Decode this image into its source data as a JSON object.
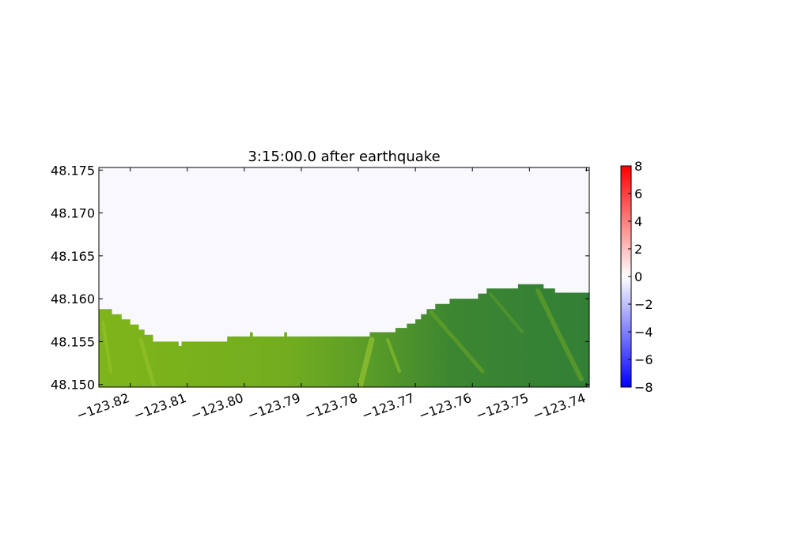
{
  "chart_data": {
    "type": "heatmap",
    "title": "3:15:00.0 after earthquake",
    "xlabel": "",
    "ylabel": "",
    "xlim": [
      -123.8255,
      -123.7395
    ],
    "ylim": [
      48.1497,
      48.1753
    ],
    "x_ticks": [
      {
        "value": -123.82,
        "label": "−123.82"
      },
      {
        "value": -123.81,
        "label": "−123.81"
      },
      {
        "value": -123.8,
        "label": "−123.80"
      },
      {
        "value": -123.79,
        "label": "−123.79"
      },
      {
        "value": -123.78,
        "label": "−123.78"
      },
      {
        "value": -123.77,
        "label": "−123.77"
      },
      {
        "value": -123.76,
        "label": "−123.76"
      },
      {
        "value": -123.75,
        "label": "−123.75"
      },
      {
        "value": -123.74,
        "label": "−123.74"
      }
    ],
    "y_ticks": [
      {
        "value": 48.15,
        "label": "48.150"
      },
      {
        "value": 48.155,
        "label": "48.155"
      },
      {
        "value": 48.16,
        "label": "48.160"
      },
      {
        "value": 48.165,
        "label": "48.165"
      },
      {
        "value": 48.17,
        "label": "48.170"
      },
      {
        "value": 48.175,
        "label": "48.175"
      }
    ],
    "colorbar": {
      "min": -8,
      "max": 8,
      "colormap": "bwr",
      "ticks": [
        {
          "value": 8,
          "label": "8"
        },
        {
          "value": 6,
          "label": "6"
        },
        {
          "value": 4,
          "label": "4"
        },
        {
          "value": 2,
          "label": "2"
        },
        {
          "value": 0,
          "label": "0"
        },
        {
          "value": -2,
          "label": "−2"
        },
        {
          "value": -4,
          "label": "−4"
        },
        {
          "value": -6,
          "label": "−6"
        },
        {
          "value": -8,
          "label": "−8"
        }
      ]
    },
    "water_color": "#f8f8fd",
    "water_value_approx": -0.2,
    "land_colors": {
      "lowland": "#7fb51a",
      "highland": "#327f36",
      "ridge": "#97c52a"
    },
    "coastline": [
      [
        -123.8255,
        48.1588
      ],
      [
        -123.8232,
        48.1588
      ],
      [
        -123.8232,
        48.1582
      ],
      [
        -123.8215,
        48.1582
      ],
      [
        -123.8215,
        48.1576
      ],
      [
        -123.82,
        48.1576
      ],
      [
        -123.82,
        48.157
      ],
      [
        -123.8185,
        48.157
      ],
      [
        -123.8185,
        48.1564
      ],
      [
        -123.8175,
        48.1564
      ],
      [
        -123.8175,
        48.1558
      ],
      [
        -123.816,
        48.1558
      ],
      [
        -123.816,
        48.155
      ],
      [
        -123.8115,
        48.155
      ],
      [
        -123.8115,
        48.1545
      ],
      [
        -123.811,
        48.1545
      ],
      [
        -123.811,
        48.155
      ],
      [
        -123.803,
        48.155
      ],
      [
        -123.803,
        48.1556
      ],
      [
        -123.799,
        48.1556
      ],
      [
        -123.799,
        48.1561
      ],
      [
        -123.7985,
        48.1561
      ],
      [
        -123.7985,
        48.1556
      ],
      [
        -123.793,
        48.1556
      ],
      [
        -123.793,
        48.1561
      ],
      [
        -123.7925,
        48.1561
      ],
      [
        -123.7925,
        48.1556
      ],
      [
        -123.778,
        48.1556
      ],
      [
        -123.778,
        48.1561
      ],
      [
        -123.7735,
        48.1561
      ],
      [
        -123.7735,
        48.1566
      ],
      [
        -123.7715,
        48.1566
      ],
      [
        -123.7715,
        48.1571
      ],
      [
        -123.77,
        48.1571
      ],
      [
        -123.77,
        48.1576
      ],
      [
        -123.769,
        48.1576
      ],
      [
        -123.769,
        48.1582
      ],
      [
        -123.768,
        48.1582
      ],
      [
        -123.768,
        48.1588
      ],
      [
        -123.7665,
        48.1588
      ],
      [
        -123.7665,
        48.1594
      ],
      [
        -123.764,
        48.1594
      ],
      [
        -123.764,
        48.16
      ],
      [
        -123.759,
        48.16
      ],
      [
        -123.759,
        48.1606
      ],
      [
        -123.7575,
        48.1606
      ],
      [
        -123.7575,
        48.1612
      ],
      [
        -123.752,
        48.1612
      ],
      [
        -123.752,
        48.1617
      ],
      [
        -123.7475,
        48.1617
      ],
      [
        -123.7475,
        48.1612
      ],
      [
        -123.7455,
        48.1612
      ],
      [
        -123.7455,
        48.1607
      ],
      [
        -123.7395,
        48.1607
      ],
      [
        -123.7395,
        48.1497
      ],
      [
        -123.8255,
        48.1497
      ]
    ]
  }
}
